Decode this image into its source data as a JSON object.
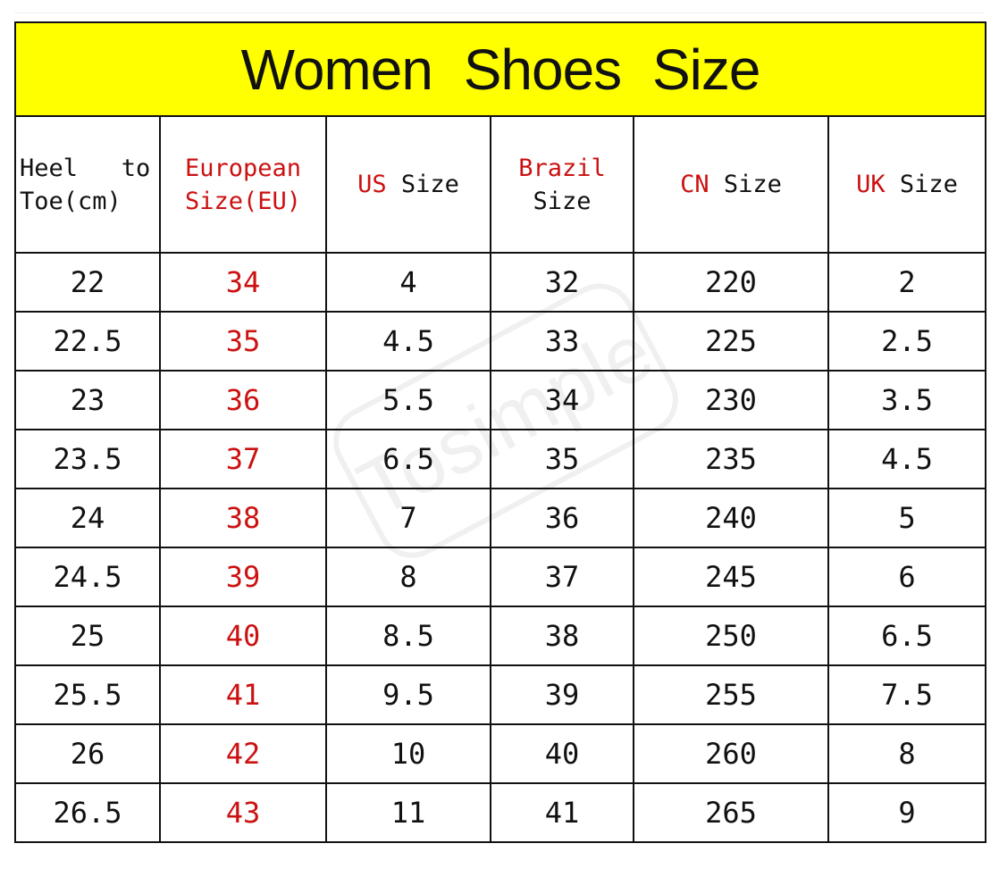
{
  "title": "Women Shoes Size",
  "watermark": "Tosimple",
  "colors": {
    "title_bg": "#ffff00",
    "accent_red": "#cc1111"
  },
  "headers": [
    {
      "parts": [
        {
          "text": "Heel   to Toe(cm)",
          "red": false
        }
      ]
    },
    {
      "parts": [
        {
          "text": "European Size(EU)",
          "red": true
        }
      ]
    },
    {
      "parts": [
        {
          "text": "US",
          "red": true
        },
        {
          "text": " Size",
          "red": false
        }
      ]
    },
    {
      "parts": [
        {
          "text": "Brazil",
          "red": true
        },
        {
          "text": "Size",
          "red": false
        }
      ]
    },
    {
      "parts": [
        {
          "text": "CN",
          "red": true
        },
        {
          "text": " Size",
          "red": false
        }
      ]
    },
    {
      "parts": [
        {
          "text": "UK",
          "red": true
        },
        {
          "text": " Size",
          "red": false
        }
      ]
    }
  ],
  "rows": [
    [
      "22",
      "34",
      "4",
      "32",
      "220",
      "2"
    ],
    [
      "22.5",
      "35",
      "4.5",
      "33",
      "225",
      "2.5"
    ],
    [
      "23",
      "36",
      "5.5",
      "34",
      "230",
      "3.5"
    ],
    [
      "23.5",
      "37",
      "6.5",
      "35",
      "235",
      "4.5"
    ],
    [
      "24",
      "38",
      "7",
      "36",
      "240",
      "5"
    ],
    [
      "24.5",
      "39",
      "8",
      "37",
      "245",
      "6"
    ],
    [
      "25",
      "40",
      "8.5",
      "38",
      "250",
      "6.5"
    ],
    [
      "25.5",
      "41",
      "9.5",
      "39",
      "255",
      "7.5"
    ],
    [
      "26",
      "42",
      "10",
      "40",
      "260",
      "8"
    ],
    [
      "26.5",
      "43",
      "11",
      "41",
      "265",
      "9"
    ]
  ]
}
